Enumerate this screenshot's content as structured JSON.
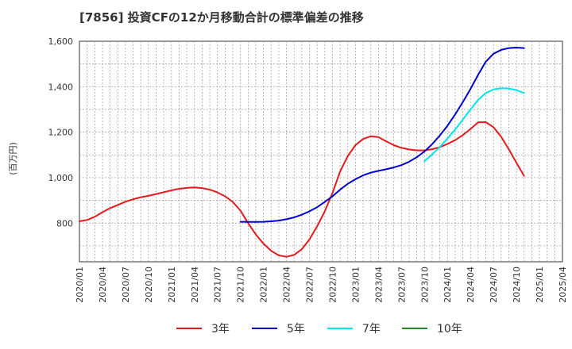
{
  "chart_data": {
    "type": "line",
    "title": "[7856]  投資CFの12か月移動合計の標準偏差の推移",
    "ylabel": "(百万円)",
    "xlabel": "",
    "ylim": [
      630,
      1600
    ],
    "yticks": [
      800,
      1000,
      1200,
      1400,
      1600
    ],
    "ytick_labels": [
      "800",
      "1,000",
      "1,200",
      "1,400",
      "1,600"
    ],
    "xticks": [
      "2020/01",
      "2020/04",
      "2020/07",
      "2020/10",
      "2021/01",
      "2021/04",
      "2021/07",
      "2021/10",
      "2022/01",
      "2022/04",
      "2022/07",
      "2022/10",
      "2023/01",
      "2023/04",
      "2023/07",
      "2023/10",
      "2024/01",
      "2024/04",
      "2024/07",
      "2024/10",
      "2025/01",
      "2025/04"
    ],
    "grid": true,
    "legend_position": "bottom",
    "series": [
      {
        "name": "3年",
        "color": "#e41a1c",
        "points": [
          [
            "2020/01",
            808
          ],
          [
            "2020/02",
            814
          ],
          [
            "2020/03",
            828
          ],
          [
            "2020/04",
            848
          ],
          [
            "2020/05",
            866
          ],
          [
            "2020/06",
            880
          ],
          [
            "2020/07",
            894
          ],
          [
            "2020/08",
            905
          ],
          [
            "2020/09",
            914
          ],
          [
            "2020/10",
            920
          ],
          [
            "2020/11",
            928
          ],
          [
            "2020/12",
            936
          ],
          [
            "2021/01",
            944
          ],
          [
            "2021/02",
            951
          ],
          [
            "2021/03",
            955
          ],
          [
            "2021/04",
            957
          ],
          [
            "2021/05",
            954
          ],
          [
            "2021/06",
            947
          ],
          [
            "2021/07",
            935
          ],
          [
            "2021/08",
            918
          ],
          [
            "2021/09",
            893
          ],
          [
            "2021/10",
            855
          ],
          [
            "2021/11",
            800
          ],
          [
            "2021/12",
            750
          ],
          [
            "2022/01",
            710
          ],
          [
            "2022/02",
            678
          ],
          [
            "2022/03",
            658
          ],
          [
            "2022/04",
            652
          ],
          [
            "2022/05",
            660
          ],
          [
            "2022/06",
            685
          ],
          [
            "2022/07",
            728
          ],
          [
            "2022/08",
            786
          ],
          [
            "2022/09",
            852
          ],
          [
            "2022/10",
            932
          ],
          [
            "2022/11",
            1027
          ],
          [
            "2022/12",
            1095
          ],
          [
            "2023/01",
            1143
          ],
          [
            "2023/02",
            1170
          ],
          [
            "2023/03",
            1182
          ],
          [
            "2023/04",
            1178
          ],
          [
            "2023/05",
            1160
          ],
          [
            "2023/06",
            1143
          ],
          [
            "2023/07",
            1131
          ],
          [
            "2023/08",
            1124
          ],
          [
            "2023/09",
            1120
          ],
          [
            "2023/10",
            1120
          ],
          [
            "2023/11",
            1125
          ],
          [
            "2023/12",
            1134
          ],
          [
            "2024/01",
            1148
          ],
          [
            "2024/02",
            1165
          ],
          [
            "2024/03",
            1187
          ],
          [
            "2024/04",
            1214
          ],
          [
            "2024/05",
            1243
          ],
          [
            "2024/06",
            1244
          ],
          [
            "2024/07",
            1222
          ],
          [
            "2024/08",
            1180
          ],
          [
            "2024/09",
            1125
          ],
          [
            "2024/10",
            1065
          ],
          [
            "2024/11",
            1008
          ]
        ]
      },
      {
        "name": "5年",
        "color": "#0000cc",
        "points": [
          [
            "2021/10",
            806
          ],
          [
            "2021/11",
            805
          ],
          [
            "2021/12",
            805
          ],
          [
            "2022/01",
            806
          ],
          [
            "2022/02",
            808
          ],
          [
            "2022/03",
            811
          ],
          [
            "2022/04",
            817
          ],
          [
            "2022/05",
            825
          ],
          [
            "2022/06",
            837
          ],
          [
            "2022/07",
            852
          ],
          [
            "2022/08",
            870
          ],
          [
            "2022/09",
            893
          ],
          [
            "2022/10",
            918
          ],
          [
            "2022/11",
            947
          ],
          [
            "2022/12",
            973
          ],
          [
            "2023/01",
            993
          ],
          [
            "2023/02",
            1010
          ],
          [
            "2023/03",
            1022
          ],
          [
            "2023/04",
            1030
          ],
          [
            "2023/05",
            1037
          ],
          [
            "2023/06",
            1045
          ],
          [
            "2023/07",
            1055
          ],
          [
            "2023/08",
            1070
          ],
          [
            "2023/09",
            1090
          ],
          [
            "2023/10",
            1115
          ],
          [
            "2023/11",
            1147
          ],
          [
            "2023/12",
            1185
          ],
          [
            "2024/01",
            1228
          ],
          [
            "2024/02",
            1278
          ],
          [
            "2024/03",
            1332
          ],
          [
            "2024/04",
            1390
          ],
          [
            "2024/05",
            1452
          ],
          [
            "2024/06",
            1510
          ],
          [
            "2024/07",
            1545
          ],
          [
            "2024/08",
            1562
          ],
          [
            "2024/09",
            1570
          ],
          [
            "2024/10",
            1572
          ],
          [
            "2024/11",
            1570
          ]
        ]
      },
      {
        "name": "7年",
        "color": "#00e5ee",
        "points": [
          [
            "2023/10",
            1072
          ],
          [
            "2023/11",
            1102
          ],
          [
            "2023/12",
            1135
          ],
          [
            "2024/01",
            1172
          ],
          [
            "2024/02",
            1212
          ],
          [
            "2024/03",
            1255
          ],
          [
            "2024/04",
            1300
          ],
          [
            "2024/05",
            1342
          ],
          [
            "2024/06",
            1372
          ],
          [
            "2024/07",
            1388
          ],
          [
            "2024/08",
            1393
          ],
          [
            "2024/09",
            1392
          ],
          [
            "2024/10",
            1385
          ],
          [
            "2024/11",
            1372
          ]
        ]
      },
      {
        "name": "10年",
        "color": "#228b22",
        "points": []
      }
    ]
  }
}
